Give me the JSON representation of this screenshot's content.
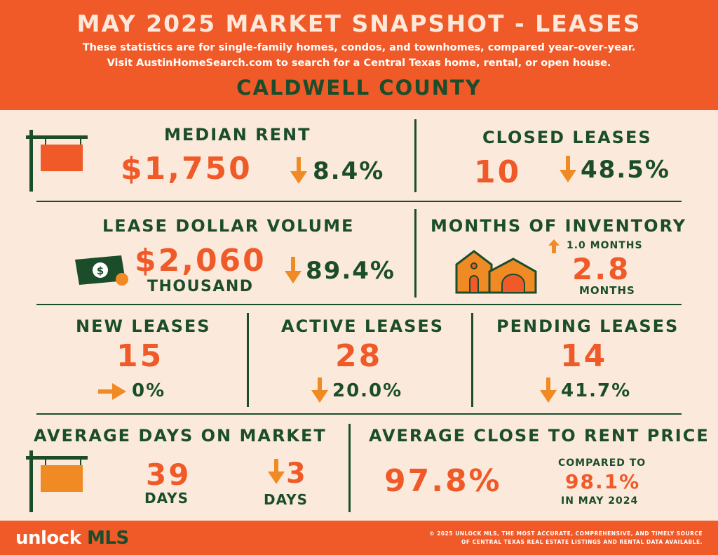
{
  "header": {
    "title": "MAY 2025 MARKET SNAPSHOT - LEASES",
    "subtitle_1": "These statistics are for single-family homes, condos, and townhomes, compared year-over-year.",
    "subtitle_2": "Visit AustinHomeSearch.com to search for a Central Texas home, rental, or open house.",
    "county": "CALDWELL COUNTY"
  },
  "median_rent": {
    "label": "MEDIAN RENT",
    "value": "$1,750",
    "change": "8.4%",
    "direction": "down"
  },
  "closed_leases": {
    "label": "CLOSED LEASES",
    "value": "10",
    "change": "48.5%",
    "direction": "down"
  },
  "lease_volume": {
    "label": "LEASE DOLLAR VOLUME",
    "value": "$2,060",
    "unit": "THOUSAND",
    "change": "89.4%",
    "direction": "down"
  },
  "months_inventory": {
    "label": "MONTHS OF INVENTORY",
    "change": "1.0  MONTHS",
    "direction": "up",
    "value": "2.8",
    "unit": "MONTHS"
  },
  "new_leases": {
    "label": "NEW LEASES",
    "value": "15",
    "change": "0%",
    "direction": "flat"
  },
  "active_leases": {
    "label": "ACTIVE LEASES",
    "value": "28",
    "change": "20.0%",
    "direction": "down"
  },
  "pending_leases": {
    "label": "PENDING LEASES",
    "value": "14",
    "change": "41.7%",
    "direction": "down"
  },
  "avg_dom": {
    "label": "AVERAGE DAYS ON MARKET",
    "value": "39",
    "unit": "DAYS",
    "change": "3",
    "change_unit": "DAYS",
    "direction": "down"
  },
  "close_to_rent": {
    "label": "AVERAGE CLOSE TO RENT PRICE",
    "value": "97.8%",
    "compared_label": "COMPARED TO",
    "compared_value": "98.1%",
    "compared_period": "IN MAY 2024"
  },
  "footer": {
    "logo_a": "unlock",
    "logo_b": "MLS",
    "copyright_1": "© 2025 UNLOCK MLS, THE MOST ACCURATE, COMPREHENSIVE, AND TIMELY SOURCE",
    "copyright_2": "OF CENTRAL TEXAS REAL ESTATE LISTINGS AND RENTAL DATA AVAILABLE."
  },
  "colors": {
    "orange": "#f05a28",
    "green": "#1b4d2b",
    "cream": "#fbeadc",
    "arrow": "#f08a24"
  }
}
